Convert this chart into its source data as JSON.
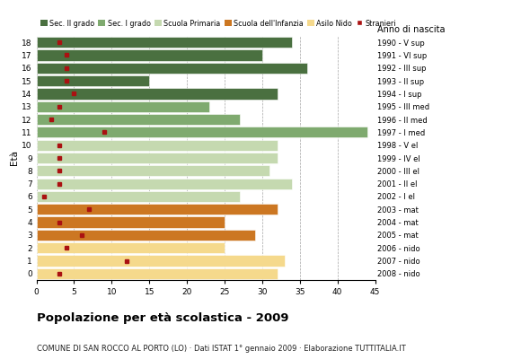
{
  "ages": [
    18,
    17,
    16,
    15,
    14,
    13,
    12,
    11,
    10,
    9,
    8,
    7,
    6,
    5,
    4,
    3,
    2,
    1,
    0
  ],
  "years": [
    "1990 - V sup",
    "1991 - VI sup",
    "1992 - III sup",
    "1993 - II sup",
    "1994 - I sup",
    "1995 - III med",
    "1996 - II med",
    "1997 - I med",
    "1998 - V el",
    "1999 - IV el",
    "2000 - III el",
    "2001 - II el",
    "2002 - I el",
    "2003 - mat",
    "2004 - mat",
    "2005 - mat",
    "2006 - nido",
    "2007 - nido",
    "2008 - nido"
  ],
  "bar_values": [
    34,
    30,
    36,
    15,
    32,
    23,
    27,
    44,
    32,
    32,
    31,
    34,
    27,
    32,
    25,
    29,
    25,
    33,
    32
  ],
  "stranieri": [
    3,
    4,
    4,
    4,
    5,
    3,
    2,
    9,
    3,
    3,
    3,
    3,
    1,
    7,
    3,
    6,
    4,
    12,
    3
  ],
  "bar_colors": [
    "#4a7040",
    "#4a7040",
    "#4a7040",
    "#4a7040",
    "#4a7040",
    "#7faa6f",
    "#7faa6f",
    "#7faa6f",
    "#c5d9b0",
    "#c5d9b0",
    "#c5d9b0",
    "#c5d9b0",
    "#c5d9b0",
    "#cc7722",
    "#cc7722",
    "#cc7722",
    "#f5d98c",
    "#f5d98c",
    "#f5d98c"
  ],
  "legend_labels": [
    "Sec. II grado",
    "Sec. I grado",
    "Scuola Primaria",
    "Scuola dell'Infanzia",
    "Asilo Nido",
    "Stranieri"
  ],
  "legend_colors": [
    "#4a7040",
    "#7faa6f",
    "#c5d9b0",
    "#cc7722",
    "#f5d98c",
    "#aa1111"
  ],
  "ylabel": "Età",
  "ylabel2": "Anno di nascita",
  "title": "Popolazione per età scolastica - 2009",
  "subtitle": "COMUNE DI SAN ROCCO AL PORTO (LO) · Dati ISTAT 1° gennaio 2009 · Elaborazione TUTTITALIA.IT",
  "xlim": [
    0,
    45
  ],
  "xticks": [
    0,
    5,
    10,
    15,
    20,
    25,
    30,
    35,
    40,
    45
  ],
  "stranieri_color": "#aa1111",
  "background_color": "#ffffff",
  "bar_height": 0.85
}
